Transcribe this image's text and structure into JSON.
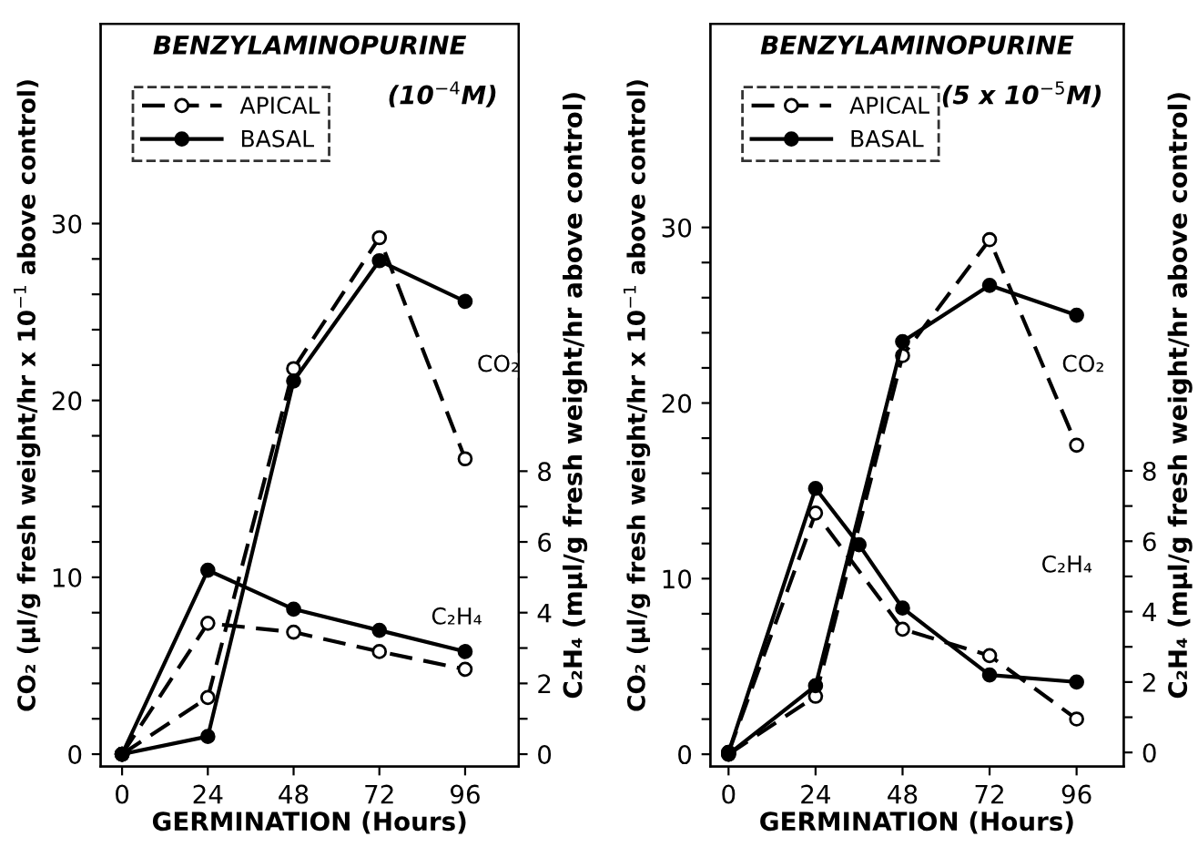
{
  "chart_data": [
    {
      "type": "line",
      "title": "BENZYLAMINOPURINE",
      "subtitle": "(10$^{−4}$M)",
      "xlabel": "GERMINATION (Hours)",
      "ylabel": "CO₂ (μl/g fresh weight/hr x 10$^{−1}$ above control)",
      "y2label": "C₂H₄ (mμl/g fresh weight/hr above control)",
      "xlim": [
        -6,
        111
      ],
      "xticks": [
        0,
        24,
        48,
        72,
        96
      ],
      "ylim": [
        -0.7,
        41.3
      ],
      "yticks": [
        0,
        {
          "value": 2,
          "label": null
        },
        {
          "value": 4,
          "label": null
        },
        {
          "value": 6,
          "label": null
        },
        {
          "value": 8,
          "label": null
        },
        10,
        {
          "value": 12,
          "label": null
        },
        {
          "value": 14,
          "label": null
        },
        {
          "value": 16,
          "label": null
        },
        {
          "value": 18,
          "label": null
        },
        20,
        {
          "value": 22,
          "label": null
        },
        {
          "value": 24,
          "label": null
        },
        {
          "value": 26,
          "label": null
        },
        {
          "value": 28,
          "label": null
        },
        30
      ],
      "y2lim": [
        -0.35,
        20.65
      ],
      "y2ticks": [
        0,
        {
          "value": 1,
          "label": null
        },
        2,
        {
          "value": 3,
          "label": null
        },
        4,
        {
          "value": 5,
          "label": null
        },
        6,
        {
          "value": 7,
          "label": null
        },
        8
      ],
      "legend": "top left",
      "marker": "circle",
      "grid": false,
      "series": [
        {
          "name": "APICAL",
          "color": "#000000",
          "line_style": "dashed",
          "x": [
            0,
            24,
            48,
            72,
            96
          ],
          "values": [
            0,
            3.2,
            21.8,
            29.2,
            16.7
          ]
        },
        {
          "name": "BASAL",
          "color": "#000000",
          "line_style": "solid",
          "x": [
            0,
            24,
            48,
            72,
            96
          ],
          "values": [
            0,
            1.0,
            21.1,
            27.9,
            25.6
          ]
        },
        {
          "color": "#000000",
          "line_style": "dashed",
          "axis": "y2",
          "x": [
            0,
            24,
            48,
            72,
            96
          ],
          "values": [
            0,
            3.7,
            3.45,
            2.9,
            2.4
          ]
        },
        {
          "color": "#000000",
          "line_style": "solid",
          "axis": "y2",
          "x": [
            0,
            24,
            48,
            72,
            96
          ],
          "values": [
            0,
            5.2,
            4.1,
            3.5,
            2.9
          ]
        }
      ],
      "annotations": [
        "CO₂",
        "C₂H₄"
      ]
    },
    {
      "type": "line",
      "title": "BENZYLAMINOPURINE",
      "subtitle": "(5 x 10$^{−5}$M)",
      "xlabel": "GERMINATION (Hours)",
      "ylabel": "CO₂ (μl/g fresh weight/hr x 10$^{−1}$ above control)",
      "y2label": "C₂H₄ (mμl/g fresh weight/hr above control)",
      "xlim": [
        -5,
        109
      ],
      "xticks": [
        0,
        24,
        48,
        72,
        96
      ],
      "ylim": [
        -0.7,
        41.6
      ],
      "yticks": [
        0,
        {
          "value": 2,
          "label": null
        },
        {
          "value": 4,
          "label": null
        },
        {
          "value": 6,
          "label": null
        },
        {
          "value": 8,
          "label": null
        },
        10,
        {
          "value": 12,
          "label": null
        },
        {
          "value": 14,
          "label": null
        },
        {
          "value": 16,
          "label": null
        },
        {
          "value": 18,
          "label": null
        },
        20,
        {
          "value": 22,
          "label": null
        },
        {
          "value": 24,
          "label": null
        },
        {
          "value": 26,
          "label": null
        },
        {
          "value": 28,
          "label": null
        },
        30
      ],
      "y2lim": [
        -0.4,
        20.7
      ],
      "y2ticks": [
        0,
        {
          "value": 1,
          "label": null
        },
        2,
        {
          "value": 3,
          "label": null
        },
        4,
        {
          "value": 5,
          "label": null
        },
        6,
        {
          "value": 7,
          "label": null
        },
        8
      ],
      "legend": "top left",
      "marker": "circle",
      "grid": false,
      "series": [
        {
          "name": "APICAL",
          "color": "#000000",
          "line_style": "dashed",
          "x": [
            0,
            24,
            48,
            72,
            96
          ],
          "values": [
            0,
            3.3,
            22.7,
            29.3,
            17.6
          ]
        },
        {
          "name": "BASAL",
          "color": "#000000",
          "line_style": "solid",
          "x": [
            0,
            24,
            48,
            72,
            96
          ],
          "values": [
            0,
            3.9,
            23.5,
            26.7,
            25.0
          ]
        },
        {
          "color": "#000000",
          "line_style": "dashed",
          "axis": "y2",
          "x": [
            0,
            24,
            48,
            72,
            96
          ],
          "values": [
            0,
            6.8,
            3.5,
            2.75,
            0.95
          ]
        },
        {
          "color": "#000000",
          "line_style": "solid",
          "axis": "y2",
          "x": [
            0,
            24,
            36,
            48,
            72,
            96
          ],
          "values": [
            0,
            7.5,
            5.9,
            4.1,
            2.2,
            2.0
          ]
        }
      ],
      "annotations": [
        "CO₂",
        "C₂H₄"
      ]
    }
  ]
}
